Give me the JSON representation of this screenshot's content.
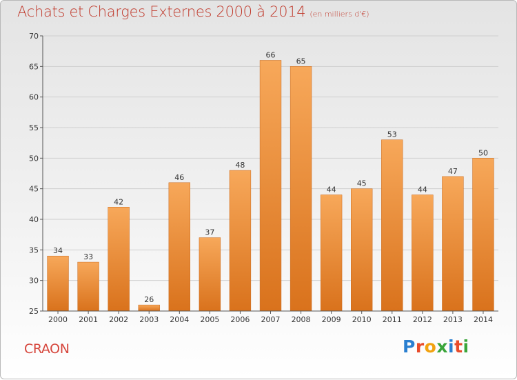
{
  "header": {
    "title": "Achats et Charges Externes 2000 à 2014",
    "unit": "(en milliers d'€)"
  },
  "footer": {
    "commune": "CRAON",
    "logo_letters": [
      "P",
      "r",
      "o",
      "x",
      "i",
      "t",
      "i"
    ],
    "logo_colors": [
      "#2a7fd0",
      "#e84b2a",
      "#f2a20f",
      "#3aa53a",
      "#2a7fd0",
      "#e84b2a",
      "#3aa53a"
    ]
  },
  "colors": {
    "bar_top": "#f7a85a",
    "bar_bottom": "#d9721c",
    "grid": "#cfcfcf",
    "axis": "#555555",
    "title": "#c0392b"
  },
  "chart_data": {
    "type": "bar",
    "title": "Achats et Charges Externes 2000 à 2014",
    "subtitle": "(en milliers d'€)",
    "xlabel": "",
    "ylabel": "",
    "categories": [
      "2000",
      "2001",
      "2002",
      "2003",
      "2004",
      "2005",
      "2006",
      "2007",
      "2008",
      "2009",
      "2010",
      "2011",
      "2012",
      "2013",
      "2014"
    ],
    "values": [
      34,
      33,
      42,
      26,
      46,
      37,
      48,
      66,
      65,
      44,
      45,
      53,
      44,
      47,
      50
    ],
    "ylim": [
      25,
      70
    ],
    "yticks": [
      25,
      30,
      35,
      40,
      45,
      50,
      55,
      60,
      65,
      70
    ],
    "grid": true,
    "data_labels": true
  }
}
